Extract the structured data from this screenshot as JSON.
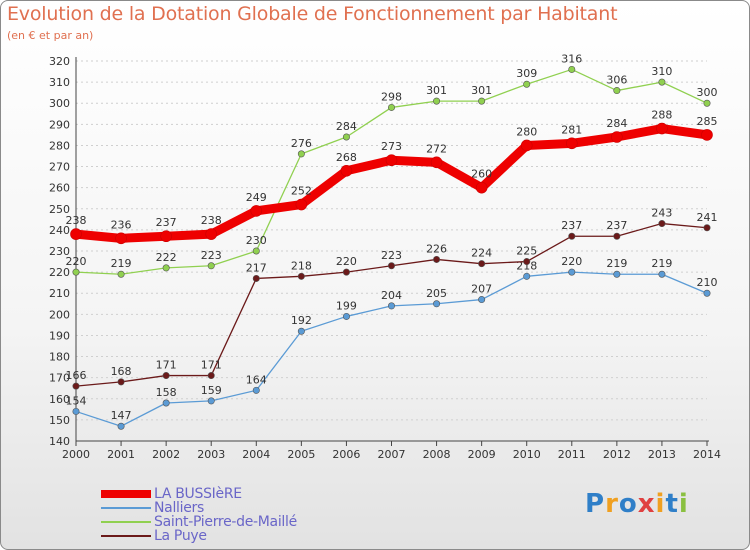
{
  "header": {
    "title": "Evolution de la Dotation Globale de Fonctionnement par Habitant",
    "subtitle": "(en € et par an)"
  },
  "brand": {
    "logo_text": "Proxiti"
  },
  "chart_data": {
    "type": "line",
    "title": "Evolution de la Dotation Globale de Fonctionnement par Habitant",
    "subtitle": "(en € et par an)",
    "xlabel": "",
    "ylabel": "",
    "x": [
      "2000",
      "2001",
      "2002",
      "2003",
      "2004",
      "2005",
      "2006",
      "2007",
      "2008",
      "2009",
      "2010",
      "2011",
      "2012",
      "2013",
      "2014"
    ],
    "ylim": [
      140,
      320
    ],
    "yticks": [
      140,
      150,
      160,
      170,
      180,
      190,
      200,
      210,
      220,
      230,
      240,
      250,
      260,
      270,
      280,
      290,
      300,
      310,
      320
    ],
    "grid": "horizontal dashed",
    "legend": "bottom-left",
    "series": [
      {
        "name": "LA BUSSIèRE",
        "color": "#ee0000",
        "values": [
          238,
          236,
          237,
          238,
          249,
          252,
          268,
          273,
          272,
          260,
          280,
          281,
          284,
          288,
          285
        ]
      },
      {
        "name": "Nalliers",
        "color": "#5b9bd5",
        "values": [
          154,
          147,
          158,
          159,
          164,
          192,
          199,
          204,
          205,
          207,
          218,
          220,
          219,
          219,
          210
        ]
      },
      {
        "name": "Saint-Pierre-de-Maillé",
        "color": "#90d050",
        "values": [
          220,
          219,
          222,
          223,
          230,
          276,
          284,
          298,
          301,
          301,
          309,
          316,
          306,
          310,
          300
        ]
      },
      {
        "name": "La Puye",
        "color": "#6b1a1a",
        "values": [
          166,
          168,
          171,
          171,
          217,
          218,
          220,
          223,
          226,
          224,
          225,
          237,
          237,
          243,
          241
        ]
      }
    ]
  }
}
